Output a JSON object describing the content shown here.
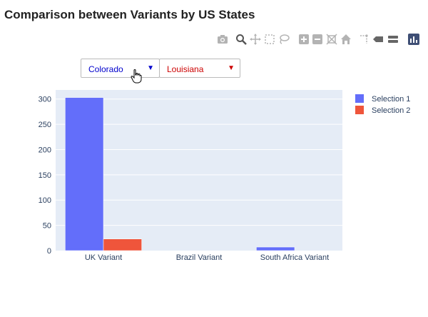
{
  "title": "Comparison between Variants by US States",
  "dropdown_1": {
    "selected": "Colorado",
    "color": "#0000cc",
    "arrow_color": "#0000cc"
  },
  "dropdown_2": {
    "selected": "Louisiana",
    "color": "#cc0000",
    "arrow_color": "#cc0000"
  },
  "arrow_glyph": "▼",
  "modebar_icons": [
    "camera-icon",
    "zoom-icon",
    "pan-icon",
    "box-select-icon",
    "lasso-select-icon",
    "zoom-in-icon",
    "zoom-out-icon",
    "autoscale-icon",
    "reset-axes-icon",
    "spike-lines-icon",
    "hover-closest-icon",
    "hover-compare-icon",
    "plotly-logo-icon"
  ],
  "chart_data": {
    "type": "bar",
    "title": "",
    "xlabel": "",
    "ylabel": "",
    "categories": [
      "UK Variant",
      "Brazil Variant",
      "South Africa Variant"
    ],
    "series": [
      {
        "name": "Selection 1",
        "values": [
          303,
          0,
          7
        ],
        "color": "#636efa"
      },
      {
        "name": "Selection 2",
        "values": [
          23,
          0,
          0
        ],
        "color": "#ef553b"
      }
    ],
    "yticks": [
      0,
      50,
      100,
      150,
      200,
      250,
      300
    ],
    "ylim": [
      0,
      318
    ],
    "grid": true,
    "legend_position": "top-right",
    "plot_background": "#e5ecf6"
  }
}
